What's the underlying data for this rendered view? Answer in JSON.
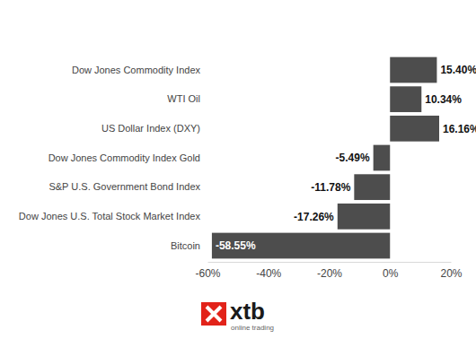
{
  "chart_data": {
    "type": "bar",
    "orientation": "horizontal",
    "categories": [
      "Dow Jones Commodity Index",
      "WTI Oil",
      "US Dollar Index (DXY)",
      "Dow Jones Commodity Index Gold",
      "S&P U.S. Government Bond Index",
      "Dow Jones U.S. Total Stock Market Index",
      "Bitcoin"
    ],
    "values": [
      15.4,
      10.34,
      16.16,
      -5.49,
      -11.78,
      -17.26,
      -58.55
    ],
    "value_labels": [
      "15.40%",
      "10.34%",
      "16.16%",
      "-5.49%",
      "-11.78%",
      "-17.26%",
      "-58.55%"
    ],
    "data_labels": true,
    "color": "#4d4d4d",
    "xlim": [
      -60,
      20
    ],
    "xticks": [
      {
        "value": -60,
        "label": "-60%"
      },
      {
        "value": -40,
        "label": "-40%"
      },
      {
        "value": -20,
        "label": "-20%"
      },
      {
        "value": 0,
        "label": "0%"
      },
      {
        "value": 20,
        "label": "20%"
      }
    ],
    "grid": false,
    "annotations": [
      "xtb",
      "online trading"
    ]
  }
}
